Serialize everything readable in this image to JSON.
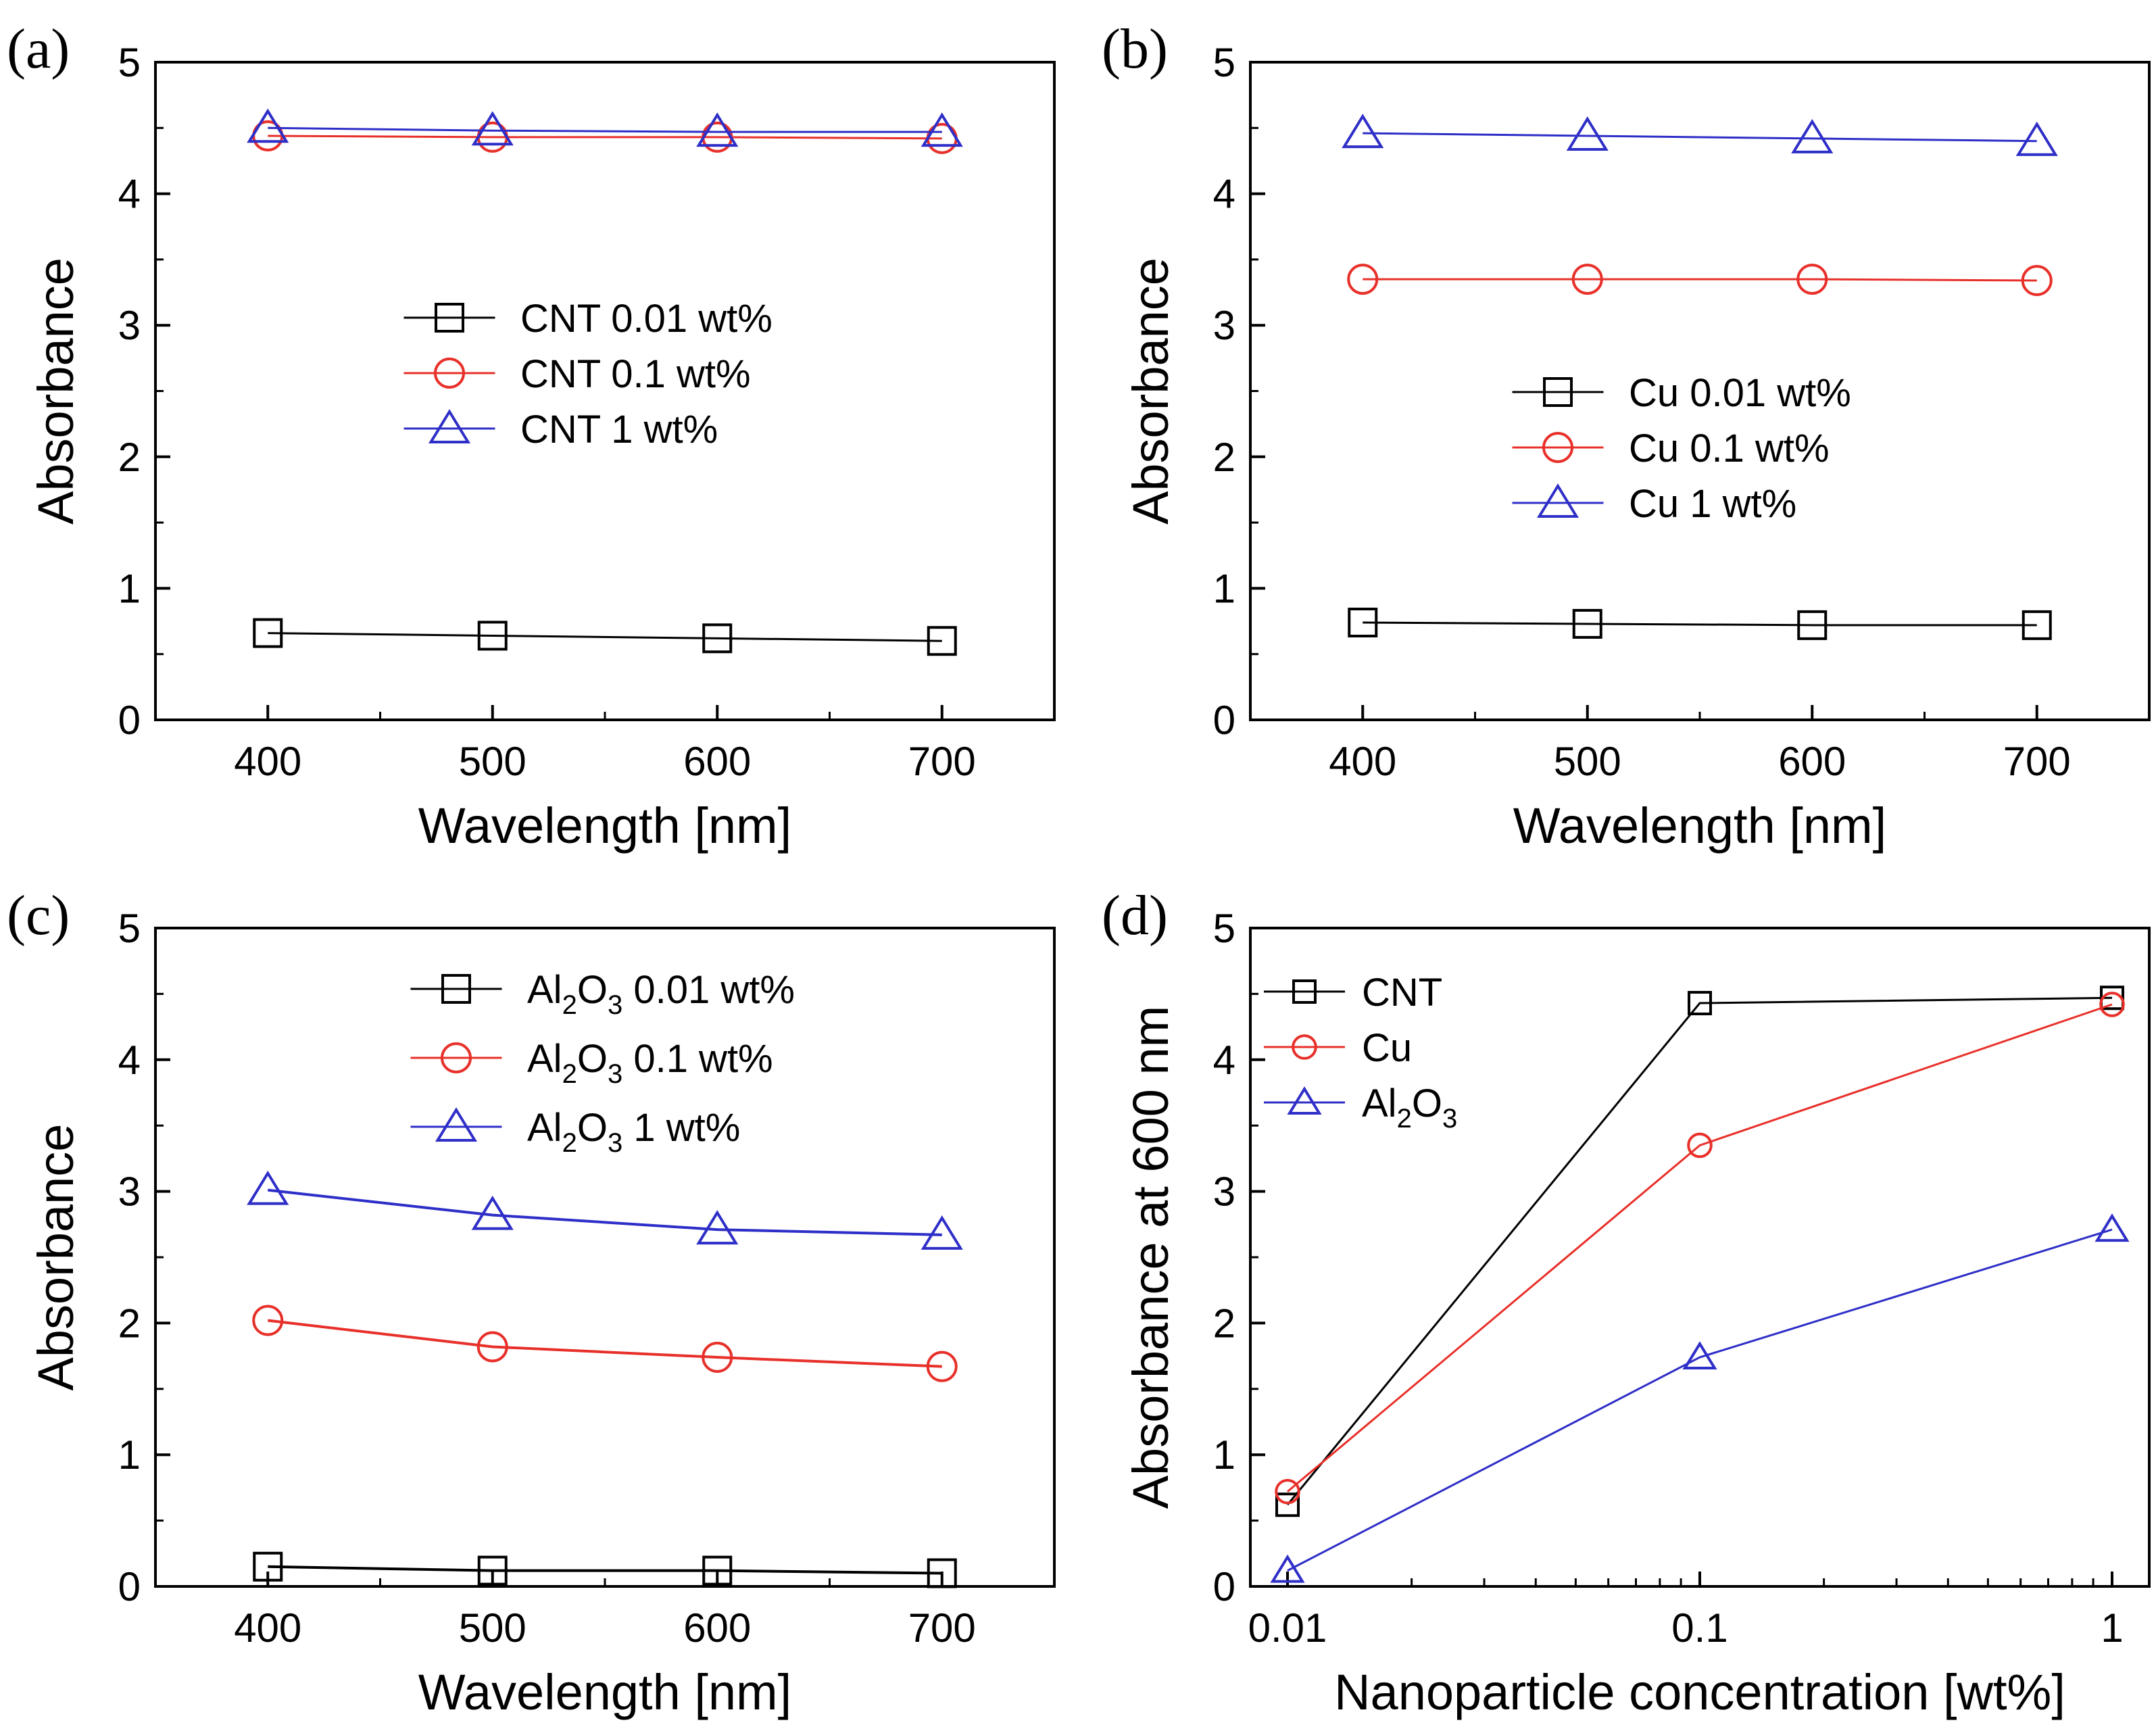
{
  "colors": {
    "black": "#000000",
    "red": "#e8302a",
    "blue": "#2e2ec8"
  },
  "chart_data": [
    {
      "panel": "(a)",
      "type": "line",
      "xlabel": "Wavelength [nm]",
      "ylabel": "Absorbance",
      "xlim": [
        350,
        750
      ],
      "ylim": [
        0,
        5
      ],
      "x_ticks": [
        400,
        500,
        600,
        700
      ],
      "y_ticks": [
        0,
        1,
        2,
        3,
        4,
        5
      ],
      "x_tick_labels": [
        "400",
        "500",
        "600",
        "700"
      ],
      "y_tick_labels": [
        "0",
        "1",
        "2",
        "3",
        "4",
        "5"
      ],
      "x_scale": "linear",
      "grid": false,
      "legend_position": "center-right",
      "series": [
        {
          "name": "CNT 0.01 wt%",
          "marker": "square",
          "color": "#000000",
          "x": [
            400,
            500,
            600,
            700
          ],
          "y": [
            0.66,
            0.64,
            0.62,
            0.6
          ]
        },
        {
          "name": "CNT 0.1 wt%",
          "marker": "circle",
          "color": "#e8302a",
          "x": [
            400,
            500,
            600,
            700
          ],
          "y": [
            4.44,
            4.43,
            4.43,
            4.42
          ]
        },
        {
          "name": "CNT 1 wt%",
          "marker": "triangle",
          "color": "#2e2ec8",
          "x": [
            400,
            500,
            600,
            700
          ],
          "y": [
            4.5,
            4.48,
            4.47,
            4.47
          ]
        }
      ]
    },
    {
      "panel": "(b)",
      "type": "line",
      "xlabel": "Wavelength [nm]",
      "ylabel": "Absorbance",
      "xlim": [
        350,
        750
      ],
      "ylim": [
        0,
        5
      ],
      "x_ticks": [
        400,
        500,
        600,
        700
      ],
      "y_ticks": [
        0,
        1,
        2,
        3,
        4,
        5
      ],
      "x_tick_labels": [
        "400",
        "500",
        "600",
        "700"
      ],
      "y_tick_labels": [
        "0",
        "1",
        "2",
        "3",
        "4",
        "5"
      ],
      "x_scale": "linear",
      "grid": false,
      "legend_position": "center-right",
      "series": [
        {
          "name": "Cu 0.01 wt%",
          "marker": "square",
          "color": "#000000",
          "x": [
            400,
            500,
            600,
            700
          ],
          "y": [
            0.74,
            0.73,
            0.72,
            0.72
          ]
        },
        {
          "name": "Cu 0.1 wt%",
          "marker": "circle",
          "color": "#e8302a",
          "x": [
            400,
            500,
            600,
            700
          ],
          "y": [
            3.35,
            3.35,
            3.35,
            3.34
          ]
        },
        {
          "name": "Cu 1 wt%",
          "marker": "triangle",
          "color": "#2e2ec8",
          "x": [
            400,
            500,
            600,
            700
          ],
          "y": [
            4.46,
            4.44,
            4.42,
            4.4
          ]
        }
      ]
    },
    {
      "panel": "(c)",
      "type": "line",
      "xlabel": "Wavelength [nm]",
      "ylabel": "Absorbance",
      "xlim": [
        350,
        750
      ],
      "ylim": [
        0,
        5
      ],
      "x_ticks": [
        400,
        500,
        600,
        700
      ],
      "y_ticks": [
        0,
        1,
        2,
        3,
        4,
        5
      ],
      "x_tick_labels": [
        "400",
        "500",
        "600",
        "700"
      ],
      "y_tick_labels": [
        "0",
        "1",
        "2",
        "3",
        "4",
        "5"
      ],
      "x_scale": "linear",
      "grid": false,
      "legend_position": "top-right",
      "series": [
        {
          "name": "Al2O3 0.01 wt%",
          "name_parts": [
            "Al",
            "2",
            "O",
            "3",
            " 0.01 wt%"
          ],
          "marker": "square",
          "color": "#000000",
          "x": [
            400,
            500,
            600,
            700
          ],
          "y": [
            0.15,
            0.12,
            0.12,
            0.1
          ]
        },
        {
          "name": "Al2O3 0.1 wt%",
          "name_parts": [
            "Al",
            "2",
            "O",
            "3",
            " 0.1 wt%"
          ],
          "marker": "circle",
          "color": "#e8302a",
          "x": [
            400,
            500,
            600,
            700
          ],
          "y": [
            2.02,
            1.82,
            1.74,
            1.67
          ]
        },
        {
          "name": "Al2O3 1 wt%",
          "name_parts": [
            "Al",
            "2",
            "O",
            "3",
            " 1 wt%"
          ],
          "marker": "triangle",
          "color": "#2e2ec8",
          "x": [
            400,
            500,
            600,
            700
          ],
          "y": [
            3.01,
            2.82,
            2.71,
            2.67
          ]
        }
      ]
    },
    {
      "panel": "(d)",
      "type": "line",
      "xlabel": "Nanoparticle concentration [wt%]",
      "ylabel": "Absorbance at 600 nm",
      "xlim": [
        0.01,
        1
      ],
      "ylim": [
        0,
        5
      ],
      "x_ticks": [
        0.01,
        0.1,
        1
      ],
      "y_ticks": [
        0,
        1,
        2,
        3,
        4,
        5
      ],
      "x_tick_labels": [
        "0.01",
        "0.1",
        "1"
      ],
      "y_tick_labels": [
        "0",
        "1",
        "2",
        "3",
        "4",
        "5"
      ],
      "x_scale": "log",
      "grid": false,
      "legend_position": "top-left",
      "series": [
        {
          "name": "CNT",
          "marker": "square",
          "color": "#000000",
          "x": [
            0.01,
            0.1,
            1
          ],
          "y": [
            0.62,
            4.43,
            4.47
          ]
        },
        {
          "name": "Cu",
          "marker": "circle",
          "color": "#e8302a",
          "x": [
            0.01,
            0.1,
            1
          ],
          "y": [
            0.72,
            3.35,
            4.42
          ]
        },
        {
          "name": "Al2O3",
          "name_parts": [
            "Al",
            "2",
            "O",
            "3",
            ""
          ],
          "marker": "triangle",
          "color": "#2e2ec8",
          "x": [
            0.01,
            0.1,
            1
          ],
          "y": [
            0.12,
            1.74,
            2.71
          ]
        }
      ]
    }
  ]
}
